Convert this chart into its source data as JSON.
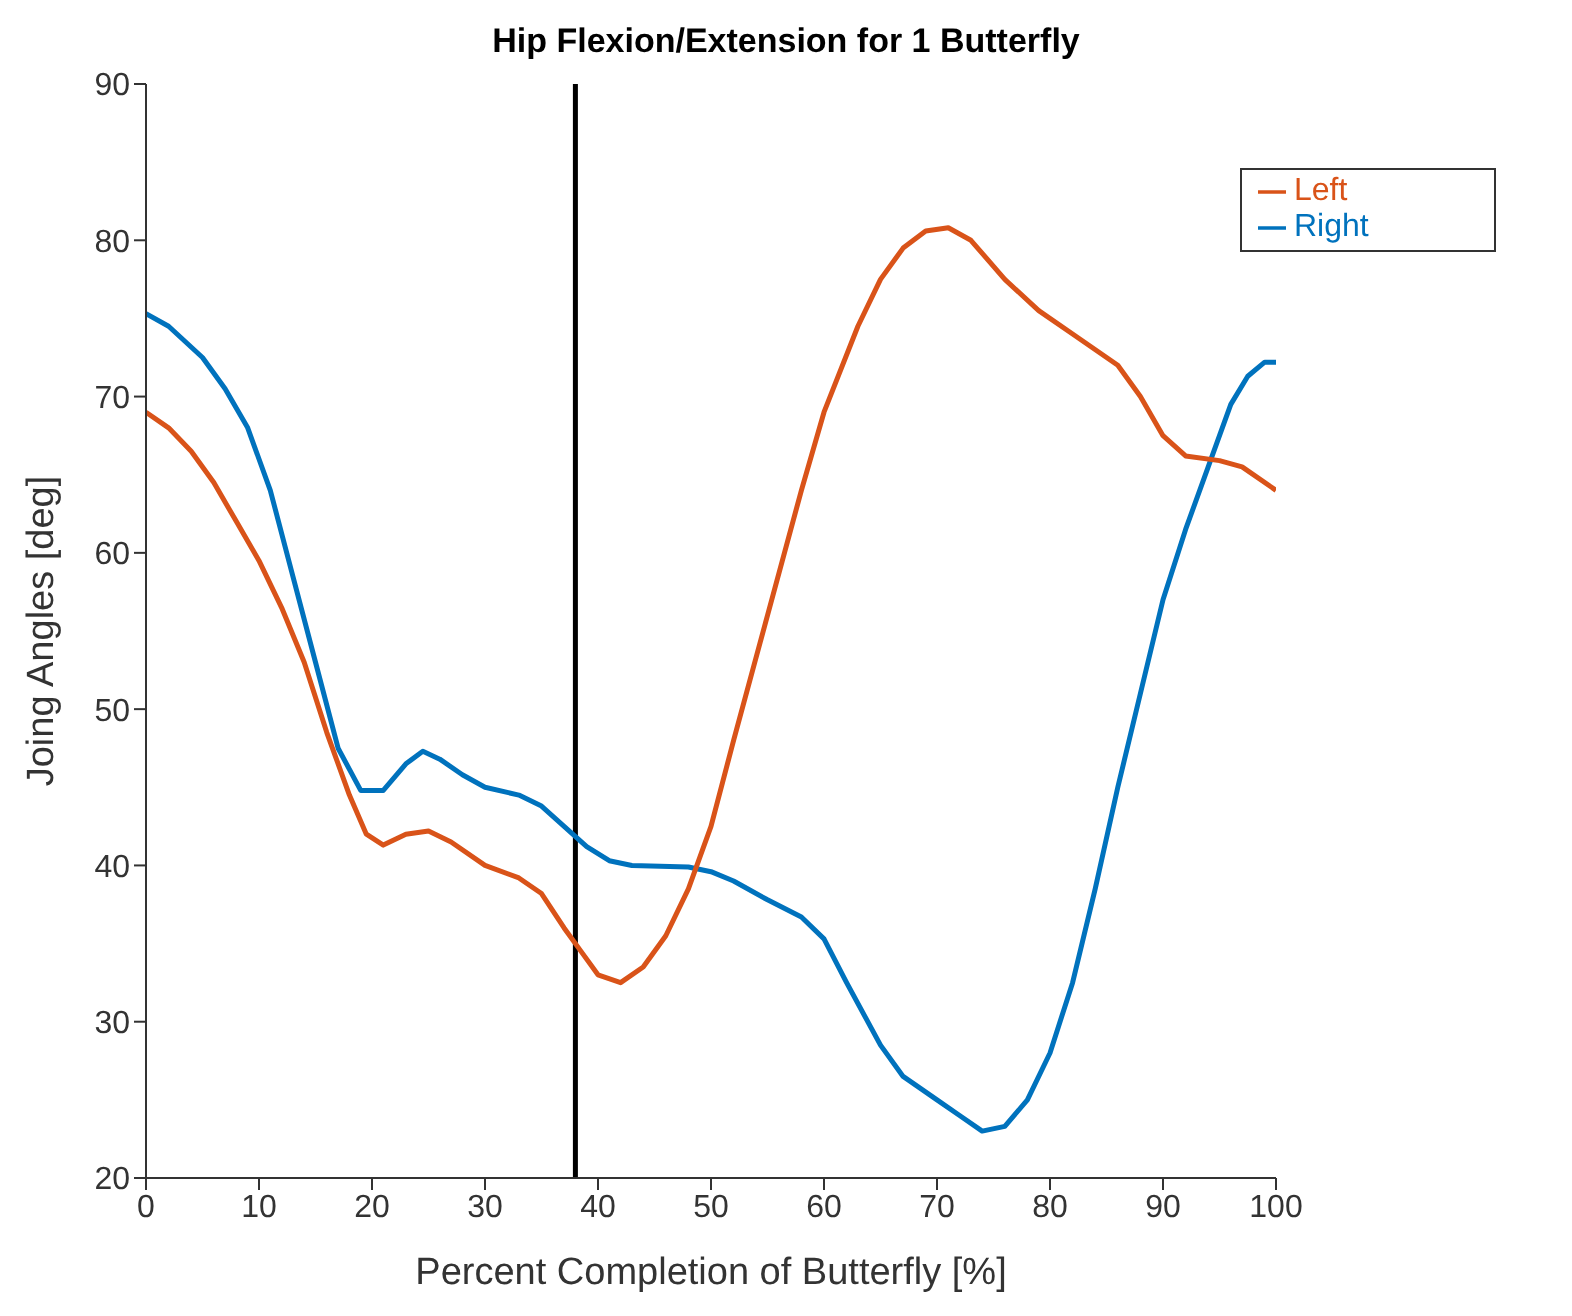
{
  "chart_data": {
    "type": "line",
    "title": "Hip Flexion/Extension for 1 Butterfly",
    "xlabel": "Percent Completion of Butterfly [%]",
    "ylabel": "Joing Angles [deg]",
    "xlim": [
      0,
      100
    ],
    "xticks": [
      0,
      10,
      20,
      30,
      40,
      50,
      60,
      70,
      80,
      90,
      100
    ],
    "ylim": [
      20,
      90
    ],
    "yticks": [
      20,
      30,
      40,
      50,
      60,
      70,
      80,
      90
    ],
    "grid": false,
    "legend": "top right",
    "marker": "none",
    "line_style": "solid",
    "ref_lines": [
      {
        "axis": "x",
        "value": 38,
        "color": "#000000"
      }
    ],
    "series": [
      {
        "name": "Right",
        "color": "#0072bd",
        "x": [
          0,
          2,
          5,
          7,
          9,
          11,
          13,
          15,
          17,
          19,
          21,
          23,
          24.5,
          26,
          28,
          30,
          33,
          35,
          37,
          39,
          41,
          43,
          48,
          50,
          52,
          55,
          58,
          60,
          62,
          65,
          67,
          70,
          72,
          74,
          76,
          78,
          80,
          82,
          84,
          86,
          88,
          90,
          92,
          94,
          96,
          97.5,
          99,
          100
        ],
        "values": [
          75.3,
          74.5,
          72.5,
          70.5,
          68,
          64,
          58.5,
          53,
          47.5,
          44.8,
          44.8,
          46.5,
          47.3,
          46.8,
          45.8,
          45,
          44.5,
          43.8,
          42.5,
          41.2,
          40.3,
          40,
          39.9,
          39.6,
          39,
          37.8,
          36.7,
          35.3,
          32.5,
          28.5,
          26.5,
          25,
          24,
          23,
          23.3,
          25,
          28,
          32.5,
          38.5,
          45,
          51,
          57,
          61.5,
          65.5,
          69.5,
          71.3,
          72.2,
          72.2
        ]
      },
      {
        "name": "Left",
        "color": "#d95319",
        "x": [
          0,
          2,
          4,
          6,
          8,
          10,
          12,
          14,
          16,
          18,
          19.5,
          21,
          23,
          25,
          27,
          30,
          33,
          35,
          37,
          38.5,
          40,
          42,
          44,
          46,
          48,
          50,
          52,
          55,
          58,
          60,
          63,
          65,
          67,
          69,
          71,
          73,
          76,
          79,
          82,
          86,
          88,
          90,
          92,
          95,
          97,
          100
        ],
        "values": [
          69,
          68,
          66.5,
          64.5,
          62,
          59.5,
          56.5,
          53,
          48.5,
          44.5,
          42,
          41.3,
          42,
          42.2,
          41.5,
          40,
          39.2,
          38.2,
          36,
          34.5,
          33,
          32.5,
          33.5,
          35.5,
          38.5,
          42.5,
          48,
          56,
          64,
          69,
          74.5,
          77.5,
          79.5,
          80.6,
          80.8,
          80,
          77.5,
          75.5,
          74,
          72,
          70,
          67.5,
          66.2,
          65.9,
          65.5,
          64
        ]
      }
    ]
  }
}
